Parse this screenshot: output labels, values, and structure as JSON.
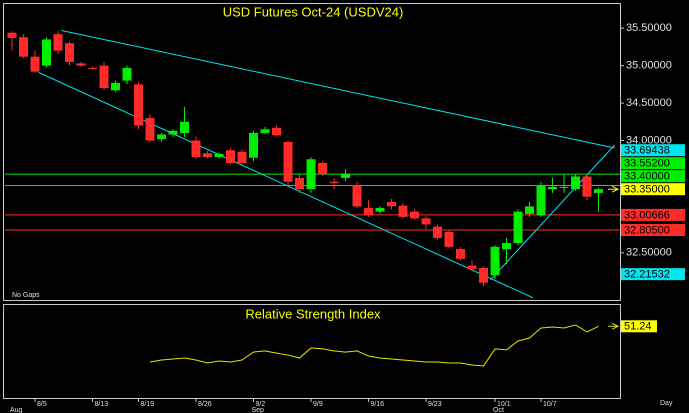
{
  "chart_data": [
    {
      "type": "candlestick",
      "title": "USD Futures Oct-24 (USDV24)",
      "note": "No Gaps",
      "x_label": "Day",
      "categories": [
        null,
        null,
        "8/5",
        null,
        null,
        null,
        null,
        "8/13",
        null,
        null,
        null,
        "8/19",
        null,
        null,
        null,
        null,
        "8/26",
        null,
        null,
        null,
        null,
        "9/2",
        null,
        null,
        null,
        null,
        "9/9",
        null,
        null,
        null,
        null,
        "9/16",
        null,
        null,
        null,
        null,
        "9/23",
        null,
        null,
        null,
        null,
        null,
        "10/1",
        null,
        null,
        null,
        "10/7",
        null,
        null,
        null,
        null,
        null
      ],
      "months": [
        "Aug",
        null,
        null,
        null,
        null,
        null,
        null,
        null,
        null,
        null,
        null,
        null,
        null,
        null,
        null,
        null,
        null,
        null,
        null,
        null,
        null,
        "Sep",
        null,
        null,
        null,
        null,
        null,
        null,
        null,
        null,
        null,
        null,
        null,
        null,
        null,
        null,
        null,
        null,
        null,
        null,
        null,
        null,
        "Oct",
        null,
        null,
        null,
        null,
        null,
        null,
        null,
        null,
        null
      ],
      "open": [
        35.44,
        35.38,
        35.12,
        35.0,
        35.42,
        35.3,
        35.03,
        34.97,
        35.0,
        34.67,
        34.8,
        34.75,
        34.3,
        34.02,
        34.08,
        34.1,
        34.0,
        33.83,
        33.78,
        33.87,
        33.85,
        33.77,
        34.1,
        34.17,
        33.98,
        33.5,
        33.35,
        33.7,
        33.45,
        33.5,
        33.4,
        33.1,
        33.05,
        33.18,
        33.13,
        33.05,
        32.96,
        32.85,
        32.78,
        32.55,
        32.33,
        32.3,
        32.2,
        32.55,
        32.63,
        33.02,
        33.0,
        33.35,
        33.37,
        33.35,
        33.52,
        33.3
      ],
      "high": [
        35.46,
        35.42,
        35.2,
        35.38,
        35.46,
        35.32,
        35.05,
        34.99,
        35.05,
        34.8,
        35.0,
        34.78,
        34.35,
        34.1,
        34.15,
        34.45,
        34.05,
        33.86,
        33.84,
        33.9,
        33.88,
        34.13,
        34.18,
        34.2,
        34.0,
        33.55,
        33.78,
        33.72,
        33.5,
        33.62,
        33.45,
        33.2,
        33.12,
        33.22,
        33.16,
        33.08,
        32.99,
        32.88,
        32.8,
        32.58,
        32.4,
        32.32,
        32.6,
        32.7,
        33.08,
        33.18,
        33.45,
        33.5,
        33.55,
        33.55,
        33.55,
        33.37
      ],
      "low": [
        35.2,
        35.1,
        34.9,
        34.98,
        35.15,
        35.0,
        34.98,
        34.95,
        34.68,
        34.65,
        34.75,
        34.15,
        33.97,
        33.98,
        34.05,
        34.05,
        33.75,
        33.76,
        33.76,
        33.68,
        33.68,
        33.72,
        34.08,
        34.05,
        33.4,
        33.3,
        33.3,
        33.53,
        33.35,
        33.46,
        33.1,
        32.98,
        33.02,
        33.08,
        32.96,
        32.94,
        32.82,
        32.68,
        32.56,
        32.4,
        32.25,
        32.05,
        32.15,
        32.35,
        32.6,
        32.98,
        32.98,
        33.3,
        33.3,
        33.33,
        33.2,
        33.05
      ],
      "close": [
        35.37,
        35.12,
        34.92,
        35.35,
        35.2,
        35.05,
        35.0,
        34.96,
        34.7,
        34.77,
        34.97,
        34.2,
        34.0,
        34.08,
        34.13,
        34.25,
        33.78,
        33.78,
        33.82,
        33.7,
        33.7,
        34.1,
        34.15,
        34.07,
        33.45,
        33.35,
        33.75,
        33.55,
        33.43,
        33.56,
        33.12,
        33.0,
        33.1,
        33.12,
        32.98,
        32.96,
        32.88,
        32.7,
        32.58,
        32.42,
        32.28,
        32.1,
        32.58,
        32.63,
        33.05,
        33.12,
        33.4,
        33.38,
        33.38,
        33.52,
        33.25,
        33.35
      ],
      "up_color": "#00ee00",
      "down_color": "#ff2a2a",
      "ylim": [
        31.87,
        35.81
      ],
      "yticks": [
        {
          "value": 35.5,
          "label": "35.50000"
        },
        {
          "value": 35.0,
          "label": "35.00000"
        },
        {
          "value": 34.5,
          "label": "34.50000"
        },
        {
          "value": 34.0,
          "label": "34.00000"
        },
        {
          "value": 32.5,
          "label": "32.50000"
        }
      ],
      "levels": [
        {
          "value": 33.69438,
          "label": "33.69438",
          "color": "#00e5ee",
          "line": false
        },
        {
          "value": 33.552,
          "label": "33.55200",
          "color": "#00ee00",
          "line": true
        },
        {
          "value": 33.4,
          "label": "33.40000",
          "color": "#00ee00",
          "line": true
        },
        {
          "value": 33.35,
          "label": "33.35000",
          "color": "#ffff00",
          "line": false
        },
        {
          "value": 33.00666,
          "label": "33.00666",
          "color": "#ff2a2a",
          "line": true
        },
        {
          "value": 32.805,
          "label": "32.80500",
          "color": "#ff2a2a",
          "line": true
        },
        {
          "value": 32.21532,
          "label": "32.21532",
          "color": "#00e5ee",
          "line": false
        }
      ],
      "trendline_color": "#00e5ee",
      "trendlines": [
        {
          "x": [
            4.3,
            52.4
          ],
          "y": [
            35.47,
            33.9
          ]
        },
        {
          "x": [
            2.3,
            45.3
          ],
          "y": [
            34.91,
            31.9
          ]
        },
        {
          "x": [
            41.6,
            52.4
          ],
          "y": [
            32.14,
            33.94
          ]
        }
      ]
    },
    {
      "type": "line",
      "title": "Relative Strength Index",
      "color": "#e6e600",
      "ylim": [
        15,
        62
      ],
      "values": [
        null,
        null,
        null,
        null,
        null,
        null,
        null,
        null,
        null,
        null,
        null,
        null,
        33.2,
        34.2,
        34.7,
        35.2,
        34.2,
        32.7,
        33.7,
        33.2,
        34.2,
        38.2,
        38.8,
        37.7,
        36.7,
        35.2,
        40.3,
        39.8,
        38.8,
        38.2,
        38.8,
        36.2,
        35.2,
        34.7,
        34.2,
        33.7,
        33.2,
        33.2,
        32.7,
        32.7,
        31.7,
        31.2,
        39.8,
        39.3,
        43.8,
        45.3,
        50.4,
        50.9,
        50.4,
        51.9,
        48.4,
        51.24
      ]
    }
  ]
}
